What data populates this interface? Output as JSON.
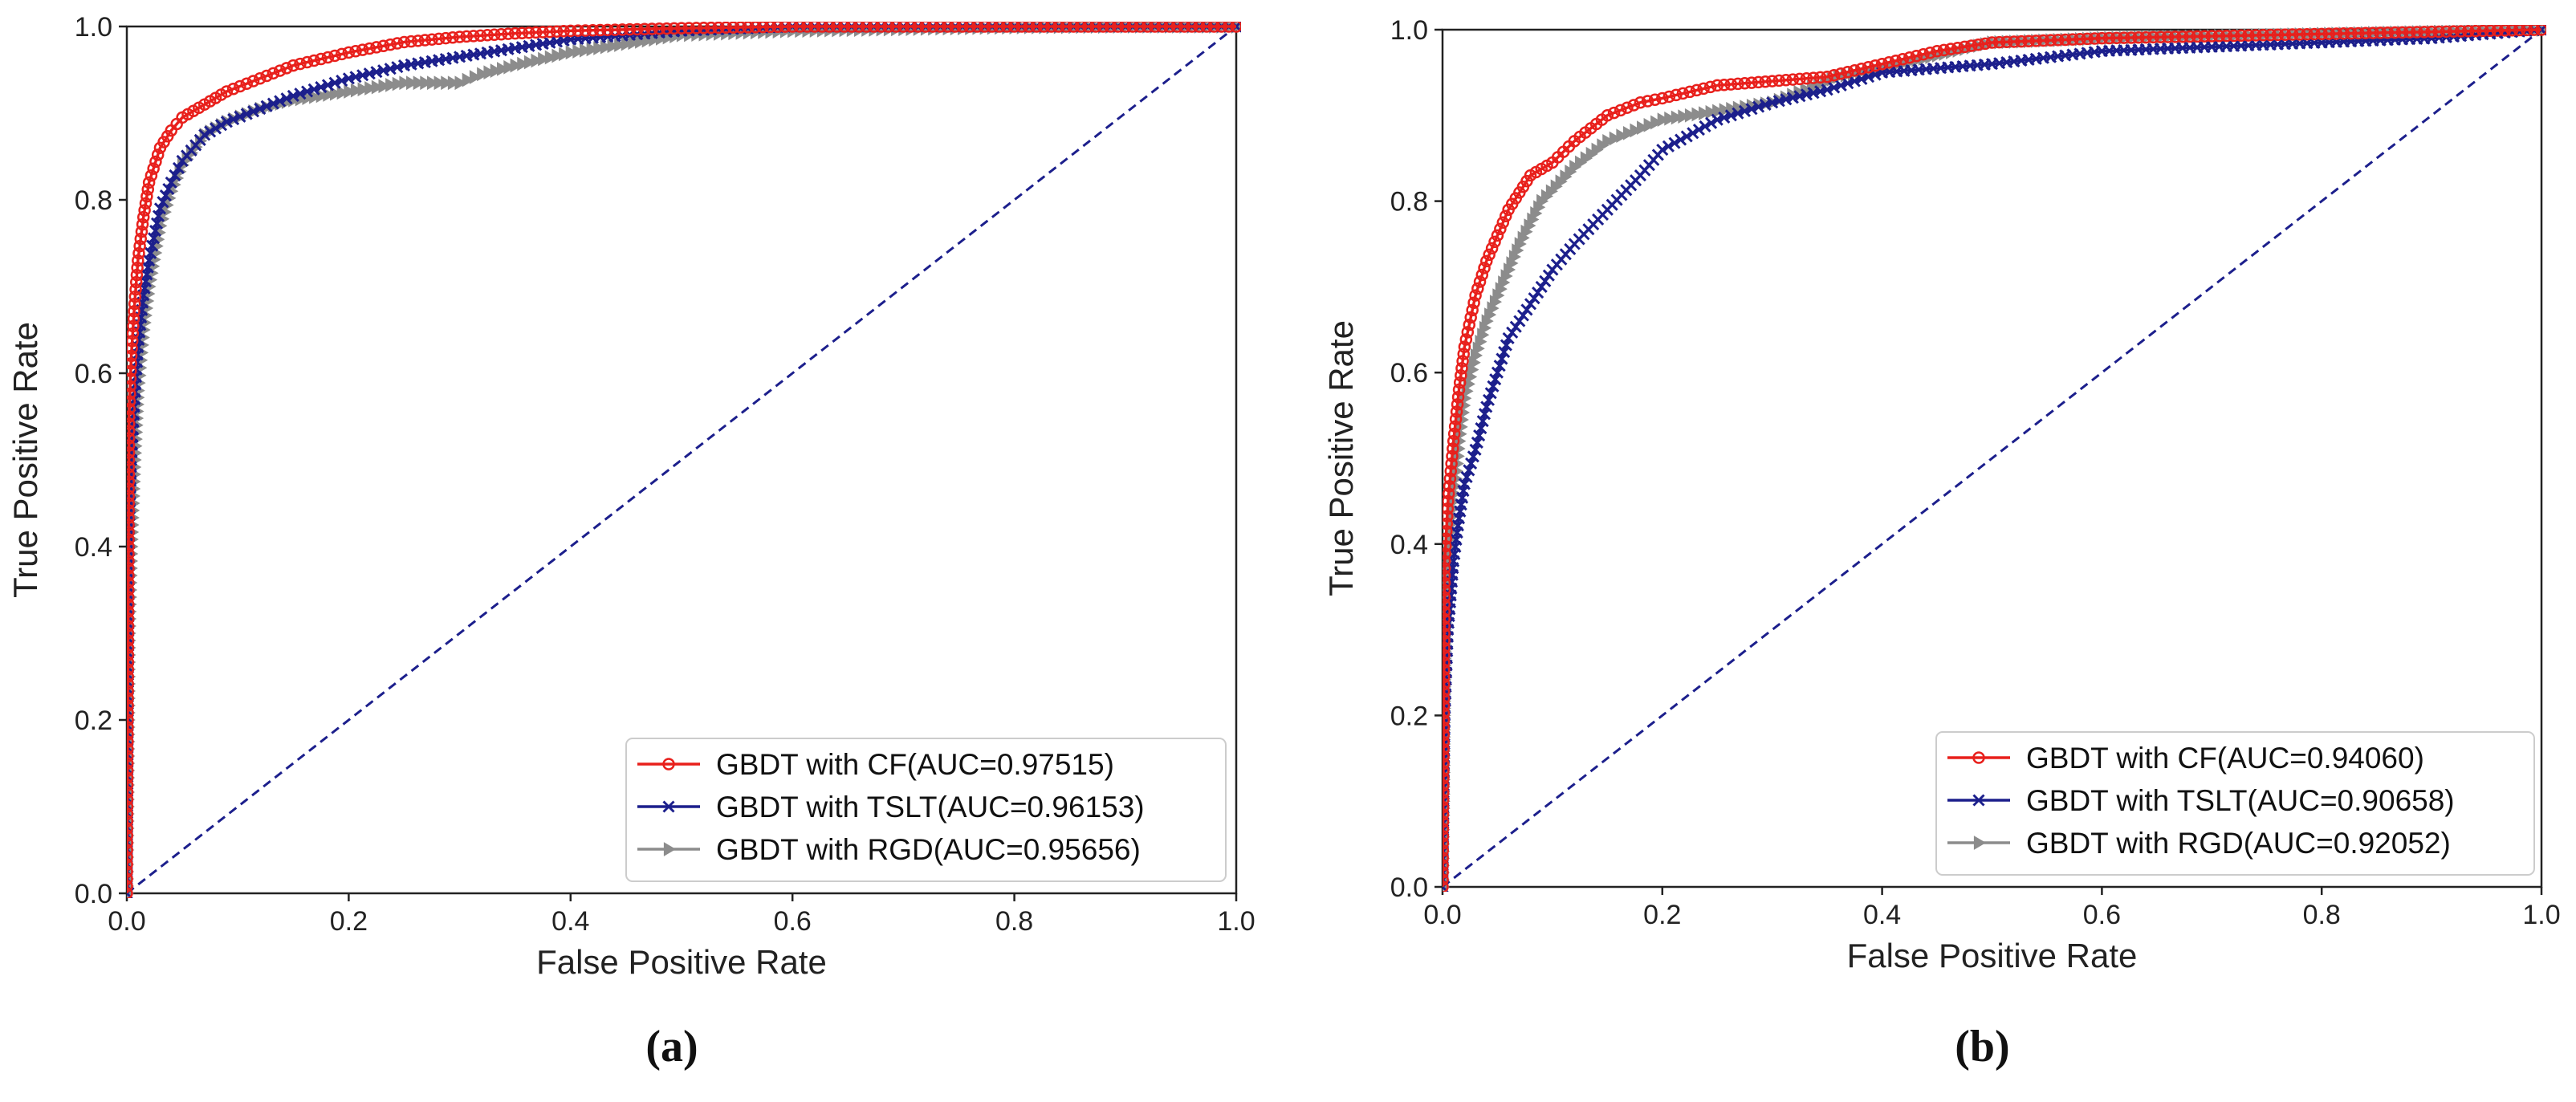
{
  "chart_data": [
    {
      "type": "line",
      "caption": "(a)",
      "xlabel": "False Positive Rate",
      "ylabel": "True Positive Rate",
      "xlim": [
        0.0,
        1.0
      ],
      "ylim": [
        0.0,
        1.0
      ],
      "xticks": [
        "0.0",
        "0.2",
        "0.4",
        "0.6",
        "0.8",
        "1.0"
      ],
      "yticks": [
        "0.0",
        "0.2",
        "0.4",
        "0.6",
        "0.8",
        "1.0"
      ],
      "legend_position": "lower-right",
      "series": [
        {
          "name": "GBDT with CF(AUC=0.97515)",
          "color": "#e8201c",
          "marker": "circle",
          "x": [
            0,
            0.002,
            0.004,
            0.007,
            0.01,
            0.015,
            0.02,
            0.03,
            0.04,
            0.05,
            0.07,
            0.09,
            0.12,
            0.15,
            0.2,
            0.25,
            0.3,
            0.35,
            0.4,
            0.5,
            0.6,
            0.7,
            0.8,
            0.9,
            1.0
          ],
          "y": [
            0,
            0.55,
            0.62,
            0.68,
            0.73,
            0.78,
            0.82,
            0.86,
            0.88,
            0.895,
            0.91,
            0.925,
            0.94,
            0.955,
            0.97,
            0.982,
            0.988,
            0.992,
            0.995,
            0.998,
            1.0,
            1.0,
            1.0,
            1.0,
            1.0
          ]
        },
        {
          "name": "GBDT with TSLT(AUC=0.96153)",
          "color": "#1c1f8c",
          "marker": "x",
          "x": [
            0,
            0.002,
            0.004,
            0.007,
            0.01,
            0.015,
            0.02,
            0.03,
            0.04,
            0.05,
            0.07,
            0.09,
            0.12,
            0.15,
            0.2,
            0.25,
            0.3,
            0.35,
            0.4,
            0.5,
            0.6,
            0.7,
            0.8,
            0.9,
            1.0
          ],
          "y": [
            0,
            0.42,
            0.5,
            0.57,
            0.63,
            0.69,
            0.73,
            0.79,
            0.82,
            0.845,
            0.875,
            0.89,
            0.905,
            0.92,
            0.94,
            0.955,
            0.965,
            0.975,
            0.985,
            0.995,
            1.0,
            1.0,
            1.0,
            1.0,
            1.0
          ]
        },
        {
          "name": "GBDT with RGD(AUC=0.95656)",
          "color": "#8c8c8c",
          "marker": "triangle-right",
          "x": [
            0,
            0.002,
            0.004,
            0.007,
            0.01,
            0.015,
            0.02,
            0.03,
            0.04,
            0.05,
            0.07,
            0.09,
            0.12,
            0.15,
            0.2,
            0.25,
            0.3,
            0.32,
            0.35,
            0.4,
            0.45,
            0.5,
            0.6,
            0.7,
            0.8,
            0.9,
            1.0
          ],
          "y": [
            0,
            0.3,
            0.4,
            0.5,
            0.58,
            0.65,
            0.7,
            0.77,
            0.81,
            0.84,
            0.875,
            0.89,
            0.905,
            0.915,
            0.925,
            0.935,
            0.935,
            0.945,
            0.955,
            0.97,
            0.98,
            0.99,
            0.995,
            0.997,
            0.999,
            1.0,
            1.0
          ]
        },
        {
          "name": "diagonal",
          "color": "#1c1f8c",
          "style": "dashed",
          "x": [
            0,
            1
          ],
          "y": [
            0,
            1
          ]
        }
      ]
    },
    {
      "type": "line",
      "caption": "(b)",
      "xlabel": "False Positive Rate",
      "ylabel": "True Positive Rate",
      "xlim": [
        0.0,
        1.0
      ],
      "ylim": [
        0.0,
        1.0
      ],
      "xticks": [
        "0.0",
        "0.2",
        "0.4",
        "0.6",
        "0.8",
        "1.0"
      ],
      "yticks": [
        "0.0",
        "0.2",
        "0.4",
        "0.6",
        "0.8",
        "1.0"
      ],
      "legend_position": "lower-right",
      "series": [
        {
          "name": "GBDT with CF(AUC=0.94060)",
          "color": "#e8201c",
          "marker": "circle",
          "x": [
            0,
            0.002,
            0.005,
            0.01,
            0.015,
            0.02,
            0.03,
            0.04,
            0.05,
            0.06,
            0.07,
            0.08,
            0.1,
            0.12,
            0.15,
            0.18,
            0.2,
            0.25,
            0.3,
            0.35,
            0.4,
            0.45,
            0.5,
            0.6,
            0.8,
            1.0
          ],
          "y": [
            0,
            0.38,
            0.45,
            0.52,
            0.58,
            0.63,
            0.69,
            0.73,
            0.76,
            0.79,
            0.81,
            0.83,
            0.845,
            0.87,
            0.9,
            0.915,
            0.92,
            0.935,
            0.94,
            0.945,
            0.96,
            0.975,
            0.985,
            0.99,
            0.995,
            1.0
          ]
        },
        {
          "name": "GBDT with TSLT(AUC=0.90658)",
          "color": "#1c1f8c",
          "marker": "x",
          "x": [
            0,
            0.002,
            0.005,
            0.01,
            0.015,
            0.02,
            0.03,
            0.04,
            0.05,
            0.06,
            0.08,
            0.1,
            0.12,
            0.15,
            0.18,
            0.2,
            0.25,
            0.3,
            0.35,
            0.4,
            0.5,
            0.6,
            0.7,
            0.8,
            0.9,
            1.0
          ],
          "y": [
            0,
            0.2,
            0.3,
            0.38,
            0.43,
            0.47,
            0.51,
            0.56,
            0.6,
            0.64,
            0.68,
            0.72,
            0.75,
            0.79,
            0.83,
            0.86,
            0.895,
            0.915,
            0.93,
            0.95,
            0.96,
            0.975,
            0.98,
            0.985,
            0.99,
            1.0
          ]
        },
        {
          "name": "GBDT with RGD(AUC=0.92052)",
          "color": "#8c8c8c",
          "marker": "triangle-right",
          "x": [
            0,
            0.002,
            0.005,
            0.01,
            0.015,
            0.02,
            0.03,
            0.04,
            0.05,
            0.07,
            0.09,
            0.12,
            0.15,
            0.2,
            0.25,
            0.3,
            0.33,
            0.36,
            0.4,
            0.45,
            0.5,
            0.6,
            0.8,
            1.0
          ],
          "y": [
            0,
            0.3,
            0.38,
            0.45,
            0.52,
            0.57,
            0.62,
            0.66,
            0.69,
            0.75,
            0.8,
            0.84,
            0.87,
            0.895,
            0.905,
            0.915,
            0.93,
            0.945,
            0.955,
            0.97,
            0.985,
            0.99,
            0.995,
            1.0
          ]
        },
        {
          "name": "diagonal",
          "color": "#1c1f8c",
          "style": "dashed",
          "x": [
            0,
            1
          ],
          "y": [
            0,
            1
          ]
        }
      ]
    }
  ]
}
